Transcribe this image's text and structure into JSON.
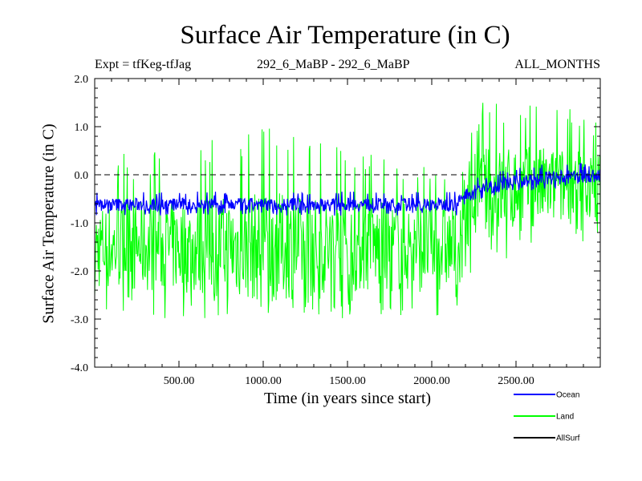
{
  "header": {
    "title": "Surface Air Temperature (in C)",
    "left": "Expt = tfKeg-tfJag",
    "middle": "292_6_MaBP - 292_6_MaBP",
    "right": "ALL_MONTHS"
  },
  "chart_data": {
    "type": "line",
    "title": "Surface Air Temperature (in C)",
    "xlabel": "Time (in years since start)",
    "ylabel": "Surface Air Temperature (in C)",
    "xlim": [
      0,
      3000
    ],
    "ylim": [
      -4.0,
      2.0
    ],
    "x_ticks": [
      500,
      1000,
      1500,
      2000,
      2500
    ],
    "x_tick_labels": [
      "500.00",
      "1000.00",
      "1500.00",
      "2000.00",
      "2500.00"
    ],
    "y_ticks": [
      2.0,
      1.0,
      0.0,
      -1.0,
      -2.0,
      -3.0,
      -4.0
    ],
    "y_tick_labels": [
      "2.0",
      "1.0",
      "0.0",
      "-1.0",
      "-2.0",
      "-3.0",
      "-4.0"
    ],
    "reference_line": 0.0,
    "legend_position": "bottom-right, outside plot",
    "series": [
      {
        "name": "Ocean",
        "color": "#0000ff",
        "x": [
          0,
          500,
          1000,
          1500,
          2000,
          2150,
          2200,
          2300,
          2500,
          2700,
          3000
        ],
        "mean": [
          -0.62,
          -0.62,
          -0.62,
          -0.62,
          -0.62,
          -0.62,
          -0.4,
          -0.28,
          -0.15,
          -0.07,
          -0.02
        ],
        "range": [
          [
            -0.85,
            -0.35
          ],
          [
            -0.85,
            -0.35
          ],
          [
            -0.85,
            -0.35
          ],
          [
            -0.85,
            -0.35
          ],
          [
            -0.85,
            -0.35
          ],
          [
            -0.85,
            -0.35
          ],
          [
            -0.6,
            -0.15
          ],
          [
            -0.5,
            0.0
          ],
          [
            -0.35,
            0.15
          ],
          [
            -0.3,
            0.25
          ],
          [
            -0.25,
            0.25
          ]
        ]
      },
      {
        "name": "Land",
        "color": "#00ff00",
        "x": [
          0,
          500,
          1000,
          1500,
          2000,
          2150,
          2200,
          2300,
          2500,
          2700,
          3000
        ],
        "mean": [
          -1.5,
          -1.5,
          -1.5,
          -1.5,
          -1.5,
          -1.5,
          -0.55,
          -0.4,
          -0.3,
          -0.25,
          -0.25
        ],
        "range": [
          [
            -2.9,
            0.4
          ],
          [
            -3.0,
            0.5
          ],
          [
            -3.0,
            1.2
          ],
          [
            -3.0,
            0.5
          ],
          [
            -3.0,
            0.4
          ],
          [
            -2.9,
            0.3
          ],
          [
            -2.2,
            1.3
          ],
          [
            -2.0,
            1.5
          ],
          [
            -1.7,
            1.6
          ],
          [
            -1.5,
            1.5
          ],
          [
            -1.4,
            1.2
          ]
        ]
      },
      {
        "name": "AllSurf",
        "color": "#000000",
        "x": [],
        "mean": []
      }
    ]
  },
  "legend": [
    {
      "label": "Ocean",
      "color": "#0000ff"
    },
    {
      "label": "Land",
      "color": "#00ff00"
    },
    {
      "label": "AllSurf",
      "color": "#000000"
    }
  ]
}
